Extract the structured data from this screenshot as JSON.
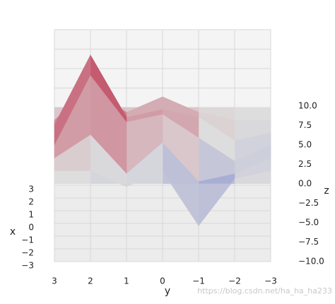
{
  "chart_data": {
    "type": "surface",
    "xlabel": "x",
    "ylabel": "y",
    "zlabel": "z",
    "x": [
      -3,
      -2,
      -1,
      0,
      1,
      2,
      3
    ],
    "y": [
      -3,
      -2,
      -1,
      0,
      1,
      2,
      3
    ],
    "z": [
      [
        0,
        0,
        0,
        0,
        0,
        0,
        0
      ],
      [
        0,
        -1,
        -7,
        0,
        -2,
        0,
        0
      ],
      [
        0,
        -2,
        -3,
        2,
        -2,
        3,
        0
      ],
      [
        0,
        -2,
        1,
        4,
        3,
        9,
        0
      ],
      [
        0,
        -1,
        2,
        3,
        2,
        10,
        1
      ],
      [
        0,
        0,
        1,
        3,
        1,
        4,
        0
      ],
      [
        0,
        0,
        0,
        0,
        0,
        0,
        0
      ]
    ],
    "colormap": "coolwarm",
    "xlim": [
      -3,
      3
    ],
    "ylim": [
      -3,
      3
    ],
    "zlim": [
      -10,
      10
    ],
    "xticks": [
      {
        "value": -3,
        "label": "−3"
      },
      {
        "value": -2,
        "label": "−2"
      },
      {
        "value": -1,
        "label": "−1"
      },
      0,
      1,
      2,
      3
    ],
    "yticks": [
      {
        "value": -3,
        "label": "−3"
      },
      {
        "value": -2,
        "label": "−2"
      },
      {
        "value": -1,
        "label": "−1"
      },
      0,
      1,
      2,
      3
    ],
    "zticks": [
      {
        "value": -10,
        "label": "−10.0"
      },
      {
        "value": -7.5,
        "label": "−7.5"
      },
      {
        "value": -5,
        "label": "−5.0"
      },
      {
        "value": -2.5,
        "label": "−2.5"
      },
      {
        "value": 0,
        "label": "0.0"
      },
      {
        "value": 2.5,
        "label": "2.5"
      },
      {
        "value": 5,
        "label": "5.0"
      },
      {
        "value": 7.5,
        "label": "7.5"
      },
      {
        "value": 10,
        "label": "10.0"
      }
    ],
    "grid": true,
    "watermark": "https://blog.csdn.net/ha_ha_ha233"
  }
}
